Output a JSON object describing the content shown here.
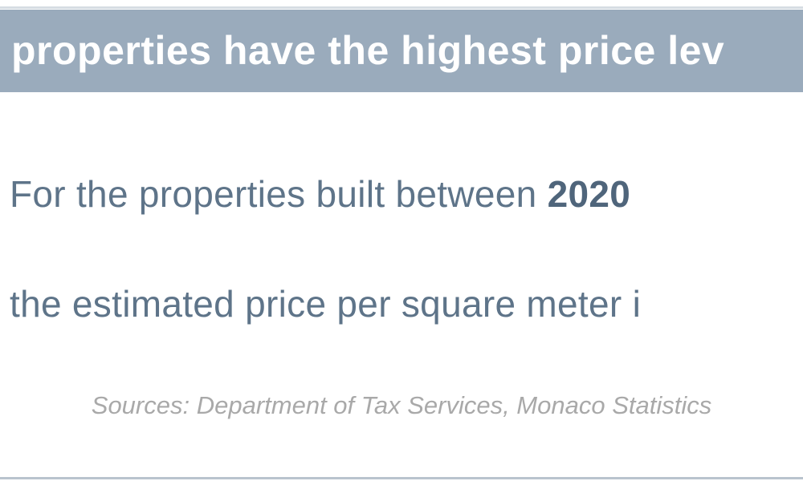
{
  "header": {
    "title": "properties have the highest price lev"
  },
  "body": {
    "lines": [
      [
        {
          "text": "For the properties built between ",
          "bold": false
        },
        {
          "text": "2020",
          "bold": true
        }
      ],
      [
        {
          "text": "the estimated price per square meter i",
          "bold": false
        }
      ]
    ]
  },
  "footer": {
    "source": "Sources: Department of Tax Services, Monaco Statistics"
  }
}
